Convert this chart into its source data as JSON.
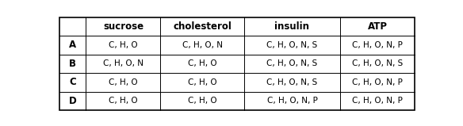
{
  "col_headers": [
    "",
    "sucrose",
    "cholesterol",
    "insulin",
    "ATP"
  ],
  "row_labels": [
    "A",
    "B",
    "C",
    "D"
  ],
  "table_data": [
    [
      "C, H, O",
      "C, H, O, N",
      "C, H, O, N, S",
      "C, H, O, N, P"
    ],
    [
      "C, H, O, N",
      "C, H, O",
      "C, H, O, N, S",
      "C, H, O, N, S"
    ],
    [
      "C, H, O",
      "C, H, O",
      "C, H, O, N, S",
      "C, H, O, N, P"
    ],
    [
      "C, H, O",
      "C, H, O",
      "C, H, O, N, P",
      "C, H, O, N, P"
    ]
  ],
  "header_fontsize": 8.5,
  "cell_fontsize": 7.5,
  "row_label_fontsize": 8.5,
  "bg_color": "#ffffff",
  "border_color": "#000000",
  "fig_width": 5.84,
  "fig_height": 1.59,
  "dpi": 100
}
